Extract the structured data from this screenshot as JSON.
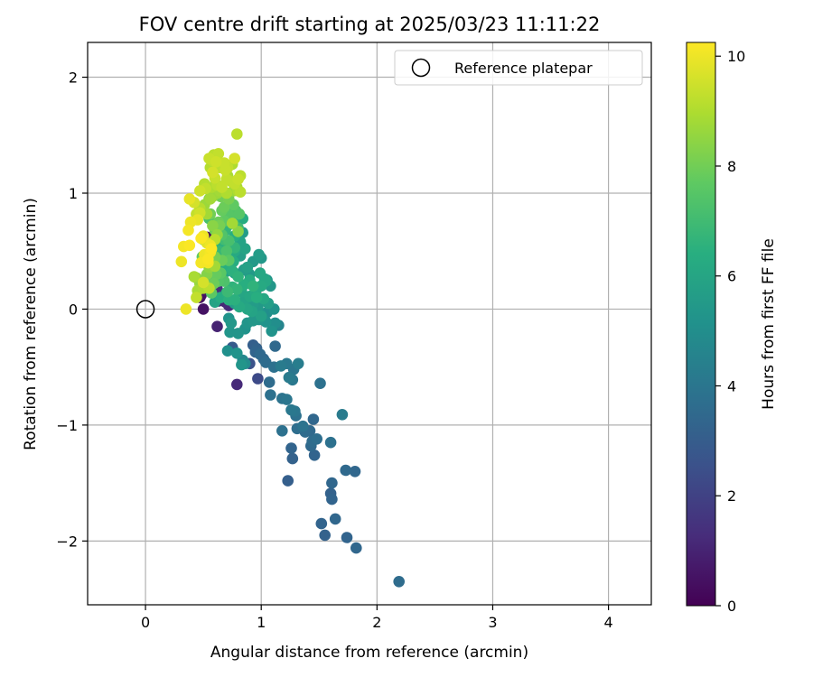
{
  "chart_data": {
    "type": "scatter",
    "title": "FOV centre drift starting at 2025/03/23 11:11:22",
    "xlabel": "Angular distance from reference (arcmin)",
    "ylabel": "Rotation from reference (arcmin)",
    "xlim": [
      -0.5,
      4.37
    ],
    "ylim": [
      -2.55,
      2.3
    ],
    "xticks": [
      0,
      1,
      2,
      3,
      4
    ],
    "xtick_labels": [
      "0",
      "1",
      "2",
      "3",
      "4"
    ],
    "yticks": [
      -2,
      -1,
      0,
      1,
      2
    ],
    "ytick_labels": [
      "−2",
      "−1",
      "0",
      "1",
      "2"
    ],
    "grid": true,
    "legend": {
      "placement": "top-right",
      "entries": [
        "Reference platepar"
      ]
    },
    "reference_point": {
      "name": "Reference platepar",
      "x": 0,
      "y": 0
    },
    "colorbar": {
      "label": "Hours from first FF file",
      "range": [
        0,
        10.25
      ],
      "ticks": [
        0,
        2,
        4,
        6,
        8,
        10
      ],
      "tick_labels": [
        "0",
        "2",
        "4",
        "6",
        "8",
        "10"
      ],
      "colormap": "viridis"
    },
    "points": [
      [
        2.19,
        -2.35,
        3.6
      ],
      [
        1.82,
        -2.06,
        3.4
      ],
      [
        1.74,
        -1.97,
        3.3
      ],
      [
        1.55,
        -1.95,
        3.2
      ],
      [
        1.52,
        -1.85,
        3.3
      ],
      [
        1.64,
        -1.81,
        3.4
      ],
      [
        1.61,
        -1.64,
        3.3
      ],
      [
        1.6,
        -1.59,
        3.2
      ],
      [
        1.61,
        -1.5,
        3.4
      ],
      [
        1.81,
        -1.4,
        3.4
      ],
      [
        1.73,
        -1.39,
        3.5
      ],
      [
        1.23,
        -1.48,
        3.1
      ],
      [
        1.27,
        -1.29,
        3.2
      ],
      [
        1.26,
        -1.2,
        3.3
      ],
      [
        1.46,
        -1.26,
        3.3
      ],
      [
        1.43,
        -1.18,
        3.5
      ],
      [
        1.44,
        -1.14,
        3.6
      ],
      [
        1.48,
        -1.12,
        3.7
      ],
      [
        1.6,
        -1.15,
        3.8
      ],
      [
        1.18,
        -1.05,
        3.8
      ],
      [
        1.31,
        -1.03,
        3.7
      ],
      [
        1.38,
        -1.06,
        3.6
      ],
      [
        1.42,
        -1.05,
        3.5
      ],
      [
        1.45,
        -0.95,
        3.4
      ],
      [
        1.36,
        -1.01,
        3.9
      ],
      [
        1.7,
        -0.91,
        4.2
      ],
      [
        1.3,
        -0.92,
        3.8
      ],
      [
        1.29,
        -0.88,
        4.0
      ],
      [
        1.26,
        -0.87,
        4.1
      ],
      [
        1.22,
        -0.78,
        4.0
      ],
      [
        1.18,
        -0.77,
        3.9
      ],
      [
        1.08,
        -0.74,
        3.8
      ],
      [
        1.07,
        -0.63,
        3.6
      ],
      [
        1.51,
        -0.64,
        3.8
      ],
      [
        1.27,
        -0.61,
        4.1
      ],
      [
        1.24,
        -0.59,
        4.2
      ],
      [
        1.28,
        -0.52,
        4.0
      ],
      [
        1.22,
        -0.47,
        4.1
      ],
      [
        1.32,
        -0.47,
        4.3
      ],
      [
        1.17,
        -0.49,
        4.2
      ],
      [
        1.11,
        -0.5,
        3.8
      ],
      [
        1.04,
        -0.46,
        3.6
      ],
      [
        1.02,
        -0.43,
        3.4
      ],
      [
        0.99,
        -0.39,
        3.5
      ],
      [
        0.95,
        -0.37,
        3.3
      ],
      [
        0.96,
        -0.34,
        3.2
      ],
      [
        1.12,
        -0.32,
        3.5
      ],
      [
        0.93,
        -0.31,
        3.1
      ],
      [
        0.97,
        -0.6,
        2.3
      ],
      [
        0.79,
        -0.65,
        1.2
      ],
      [
        0.9,
        -0.47,
        2.6
      ],
      [
        0.84,
        -0.44,
        4.7
      ],
      [
        0.79,
        -0.38,
        5.2
      ],
      [
        0.71,
        -0.36,
        5.1
      ],
      [
        0.75,
        -0.33,
        2.9
      ],
      [
        0.86,
        -0.47,
        4.9
      ],
      [
        0.83,
        -0.48,
        5.3
      ],
      [
        0.73,
        -0.2,
        5.3
      ],
      [
        0.74,
        -0.12,
        5.4
      ],
      [
        0.72,
        -0.08,
        5.2
      ],
      [
        0.8,
        -0.21,
        5.3
      ],
      [
        0.86,
        -0.17,
        5.2
      ],
      [
        0.88,
        -0.12,
        5.3
      ],
      [
        0.93,
        -0.1,
        5.4
      ],
      [
        0.98,
        -0.09,
        5.3
      ],
      [
        1.04,
        -0.11,
        5.2
      ],
      [
        1.09,
        -0.19,
        5.2
      ],
      [
        1.12,
        -0.12,
        5.0
      ],
      [
        1.15,
        -0.14,
        4.6
      ],
      [
        0.99,
        -0.03,
        5.2
      ],
      [
        1.05,
        -0.03,
        5.0
      ],
      [
        0.97,
        0.02,
        5.5
      ],
      [
        0.93,
        0.04,
        5.6
      ],
      [
        0.86,
        0.09,
        5.9
      ],
      [
        0.62,
        -0.15,
        1.0
      ],
      [
        0.5,
        0.0,
        0.5
      ],
      [
        0.63,
        0.07,
        0.9
      ],
      [
        0.69,
        0.06,
        1.1
      ],
      [
        0.72,
        0.03,
        1.2
      ],
      [
        0.77,
        0.05,
        5.6
      ],
      [
        0.83,
        0.15,
        6.0
      ],
      [
        0.9,
        0.11,
        6.1
      ],
      [
        0.95,
        0.15,
        6.2
      ],
      [
        1.0,
        0.2,
        6.2
      ],
      [
        1.03,
        0.26,
        5.9
      ],
      [
        1.04,
        0.24,
        6.1
      ],
      [
        0.99,
        0.31,
        6.1
      ],
      [
        0.9,
        0.25,
        6.3
      ],
      [
        0.85,
        0.21,
        6.4
      ],
      [
        0.8,
        0.28,
        6.6
      ],
      [
        0.75,
        0.33,
        6.5
      ],
      [
        0.71,
        0.36,
        6.4
      ],
      [
        0.76,
        0.41,
        6.3
      ],
      [
        0.67,
        0.4,
        6.2
      ],
      [
        0.82,
        0.46,
        5.7
      ],
      [
        0.86,
        0.52,
        5.9
      ],
      [
        0.77,
        0.5,
        6.2
      ],
      [
        0.98,
        0.47,
        5.6
      ],
      [
        0.47,
        0.1,
        0.4
      ],
      [
        0.48,
        0.12,
        0.5
      ],
      [
        0.55,
        0.16,
        0.6
      ],
      [
        0.62,
        0.17,
        1.3
      ],
      [
        0.6,
        0.06,
        5.9
      ],
      [
        0.65,
        0.1,
        6.3
      ],
      [
        0.7,
        0.14,
        6.4
      ],
      [
        0.75,
        0.19,
        6.6
      ],
      [
        0.79,
        0.17,
        6.7
      ],
      [
        0.72,
        0.08,
        6.5
      ],
      [
        0.63,
        0.24,
        7.4
      ],
      [
        0.57,
        0.26,
        7.6
      ],
      [
        0.53,
        0.3,
        8.3
      ],
      [
        0.55,
        0.36,
        8.5
      ],
      [
        0.6,
        0.37,
        8.8
      ],
      [
        0.47,
        0.22,
        8.6
      ],
      [
        0.44,
        0.27,
        8.4
      ],
      [
        0.42,
        0.28,
        8.9
      ],
      [
        0.5,
        0.18,
        9.0
      ],
      [
        0.45,
        0.16,
        8.9
      ],
      [
        0.55,
        0.18,
        9.2
      ],
      [
        0.5,
        0.23,
        9.6
      ],
      [
        0.44,
        0.1,
        9.3
      ],
      [
        0.35,
        0.0,
        10.0
      ],
      [
        0.31,
        0.41,
        10.0
      ],
      [
        0.33,
        0.54,
        10.1
      ],
      [
        0.38,
        0.55,
        10.2
      ],
      [
        0.37,
        0.68,
        10.1
      ],
      [
        0.48,
        0.61,
        10.2
      ],
      [
        0.47,
        0.83,
        9.5
      ],
      [
        0.39,
        0.75,
        10.0
      ],
      [
        0.45,
        0.77,
        9.9
      ],
      [
        0.5,
        0.63,
        10.0
      ],
      [
        0.53,
        0.57,
        9.8
      ],
      [
        0.54,
        0.43,
        10.2
      ],
      [
        0.51,
        0.47,
        10.0
      ],
      [
        0.56,
        0.49,
        10.1
      ],
      [
        0.54,
        0.4,
        10.1
      ],
      [
        0.48,
        0.4,
        10.1
      ],
      [
        0.57,
        0.52,
        10.2
      ],
      [
        0.56,
        0.55,
        10.0
      ],
      [
        0.6,
        0.6,
        9.2
      ],
      [
        0.62,
        0.64,
        8.6
      ],
      [
        0.64,
        0.72,
        8.1
      ],
      [
        0.66,
        0.85,
        7.8
      ],
      [
        0.68,
        0.88,
        7.9
      ],
      [
        0.72,
        0.81,
        7.5
      ],
      [
        0.74,
        0.84,
        7.0
      ],
      [
        0.76,
        0.77,
        6.8
      ],
      [
        0.71,
        0.72,
        6.6
      ],
      [
        0.69,
        0.68,
        6.7
      ],
      [
        0.77,
        0.63,
        6.4
      ],
      [
        0.8,
        0.7,
        7.0
      ],
      [
        0.84,
        0.66,
        5.6
      ],
      [
        0.84,
        0.78,
        6.3
      ],
      [
        0.8,
        0.67,
        8.4
      ],
      [
        0.75,
        0.74,
        8.8
      ],
      [
        0.72,
        0.59,
        7.2
      ],
      [
        0.66,
        0.56,
        6.4
      ],
      [
        0.63,
        0.5,
        6.8
      ],
      [
        0.7,
        0.5,
        7.3
      ],
      [
        0.72,
        0.42,
        7.6
      ],
      [
        0.66,
        0.42,
        7.9
      ],
      [
        0.6,
        0.45,
        8.1
      ],
      [
        0.49,
        0.45,
        7.7
      ],
      [
        0.5,
        0.6,
        8.2
      ],
      [
        0.55,
        0.78,
        7.2
      ],
      [
        0.56,
        0.82,
        8.0
      ],
      [
        0.53,
        0.82,
        8.8
      ],
      [
        0.47,
        0.87,
        9.1
      ],
      [
        0.44,
        0.82,
        9.3
      ],
      [
        0.51,
        0.9,
        8.7
      ],
      [
        0.56,
        0.95,
        8.8
      ],
      [
        0.58,
        0.97,
        8.6
      ],
      [
        0.6,
        1.0,
        8.3
      ],
      [
        0.62,
        1.0,
        8.7
      ],
      [
        0.64,
        1.02,
        8.8
      ],
      [
        0.7,
        1.0,
        9.0
      ],
      [
        0.76,
        1.02,
        8.7
      ],
      [
        0.8,
        1.02,
        9.0
      ],
      [
        0.82,
        1.01,
        9.2
      ],
      [
        0.79,
        1.05,
        8.9
      ],
      [
        0.77,
        1.08,
        9.3
      ],
      [
        0.8,
        1.12,
        9.4
      ],
      [
        0.82,
        1.15,
        9.2
      ],
      [
        0.7,
        1.12,
        9.3
      ],
      [
        0.69,
        1.2,
        9.4
      ],
      [
        0.71,
        1.22,
        9.3
      ],
      [
        0.68,
        1.26,
        9.4
      ],
      [
        0.64,
        1.22,
        9.2
      ],
      [
        0.61,
        1.27,
        9.5
      ],
      [
        0.58,
        1.28,
        9.3
      ],
      [
        0.55,
        1.3,
        9.4
      ],
      [
        0.59,
        1.33,
        9.2
      ],
      [
        0.63,
        1.34,
        9.3
      ],
      [
        0.56,
        1.22,
        9.1
      ],
      [
        0.58,
        1.18,
        9.6
      ],
      [
        0.6,
        1.13,
        9.4
      ],
      [
        0.57,
        1.05,
        9.0
      ],
      [
        0.62,
        1.07,
        9.2
      ],
      [
        0.66,
        1.05,
        9.3
      ],
      [
        0.74,
        1.1,
        9.2
      ],
      [
        0.71,
        1.15,
        8.9
      ],
      [
        0.77,
        1.3,
        9.6
      ],
      [
        0.75,
        1.25,
        9.0
      ],
      [
        0.79,
        1.51,
        9.2
      ],
      [
        0.52,
        1.04,
        9.3
      ],
      [
        0.47,
        1.02,
        9.5
      ],
      [
        0.55,
        0.95,
        8.4
      ],
      [
        0.38,
        0.95,
        9.9
      ],
      [
        0.51,
        1.08,
        9.1
      ],
      [
        0.42,
        0.92,
        9.6
      ],
      [
        0.65,
        0.97,
        8.0
      ],
      [
        0.72,
        0.95,
        8.1
      ],
      [
        0.76,
        0.9,
        7.7
      ],
      [
        0.78,
        0.85,
        7.4
      ],
      [
        0.81,
        0.82,
        7.5
      ],
      [
        0.73,
        0.78,
        7.3
      ],
      [
        0.68,
        0.76,
        7.7
      ],
      [
        0.63,
        0.75,
        7.9
      ],
      [
        0.58,
        0.72,
        8.4
      ],
      [
        0.6,
        0.68,
        8.0
      ],
      [
        0.66,
        0.64,
        7.4
      ],
      [
        0.68,
        0.6,
        7.0
      ],
      [
        0.72,
        0.55,
        6.5
      ],
      [
        0.77,
        0.53,
        6.7
      ],
      [
        0.82,
        0.58,
        5.9
      ],
      [
        0.62,
        0.53,
        6.5
      ],
      [
        0.58,
        0.54,
        6.2
      ],
      [
        0.55,
        0.58,
        1.0
      ],
      [
        0.53,
        0.62,
        0.2
      ],
      [
        0.59,
        0.42,
        6.0
      ],
      [
        0.64,
        0.36,
        5.9
      ],
      [
        0.69,
        0.32,
        6.0
      ],
      [
        0.77,
        0.31,
        5.8
      ],
      [
        0.85,
        0.34,
        5.6
      ],
      [
        0.9,
        0.3,
        5.5
      ],
      [
        0.88,
        0.36,
        5.8
      ],
      [
        0.93,
        0.41,
        5.5
      ],
      [
        1.0,
        0.44,
        5.4
      ],
      [
        1.05,
        0.25,
        5.3
      ],
      [
        1.08,
        0.2,
        5.4
      ],
      [
        0.93,
        0.2,
        6.6
      ],
      [
        0.96,
        0.1,
        6.4
      ],
      [
        1.02,
        0.09,
        6.1
      ],
      [
        1.06,
        0.05,
        5.7
      ],
      [
        1.11,
        0.0,
        5.2
      ],
      [
        1.0,
        -0.06,
        5.8
      ],
      [
        0.92,
        -0.02,
        5.9
      ],
      [
        0.88,
        0.0,
        6.0
      ],
      [
        0.81,
        0.02,
        6.2
      ],
      [
        0.77,
        0.08,
        6.5
      ],
      [
        0.71,
        0.15,
        6.9
      ],
      [
        0.68,
        0.24,
        7.3
      ],
      [
        0.65,
        0.31,
        7.6
      ],
      [
        0.61,
        0.3,
        7.8
      ],
      [
        0.59,
        0.22,
        7.9
      ],
      [
        0.57,
        0.14,
        7.6
      ]
    ]
  }
}
